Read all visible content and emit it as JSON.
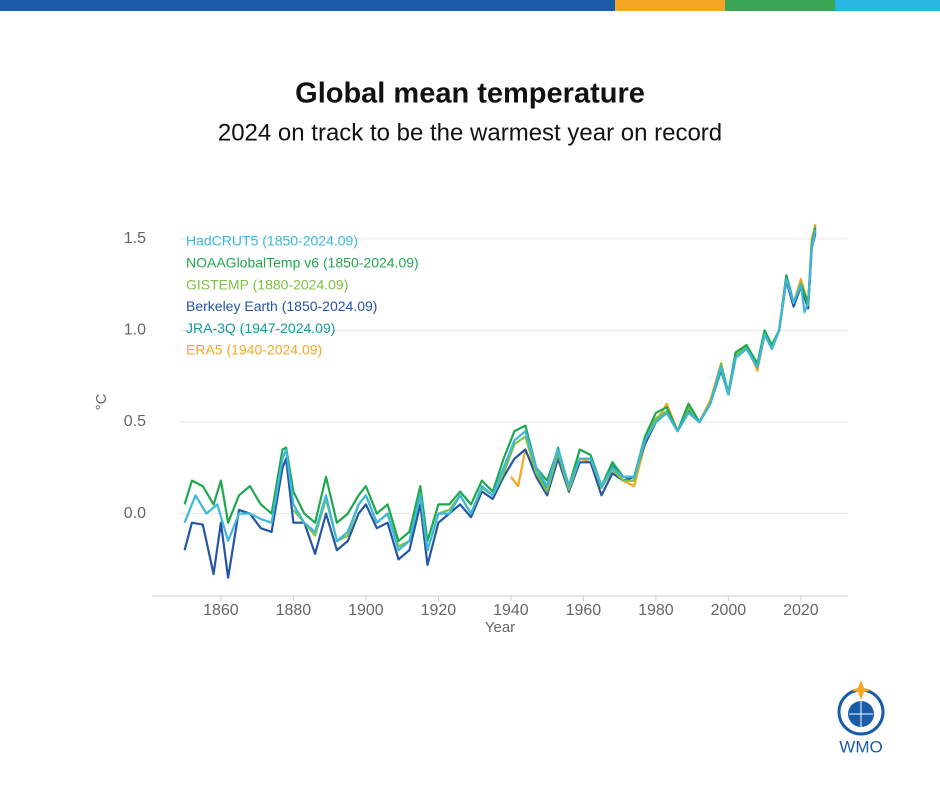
{
  "chart_data": {
    "type": "line",
    "title": "Global mean temperature",
    "subtitle": "2024 on track to be the warmest year on record",
    "x_label": "Year",
    "y_label": "°C",
    "xlim": [
      1841,
      2033
    ],
    "ylim": [
      -0.45,
      1.63
    ],
    "xticks": [
      1860,
      1880,
      1900,
      1920,
      1940,
      1960,
      1980,
      2000,
      2020
    ],
    "yticks": [
      {
        "value": 0,
        "label": "0.0"
      },
      0.5,
      {
        "value": 1,
        "label": "1.0"
      },
      1.5
    ],
    "grid": true,
    "legend": "top-left",
    "series": [
      {
        "name": "HadCRUT5 (1850-2024.09)",
        "color": "#3db8dc",
        "x": [
          1850,
          1853,
          1856,
          1859,
          1862,
          1865,
          1868,
          1871,
          1874,
          1877,
          1878,
          1880,
          1883,
          1886,
          1889,
          1892,
          1895,
          1898,
          1900,
          1903,
          1906,
          1909,
          1912,
          1915,
          1917,
          1920,
          1923,
          1926,
          1929,
          1932,
          1935,
          1938,
          1941,
          1944,
          1947,
          1950,
          1953,
          1956,
          1959,
          1962,
          1965,
          1968,
          1971,
          1974,
          1977,
          1980,
          1983,
          1986,
          1989,
          1992,
          1995,
          1998,
          2000,
          2002,
          2005,
          2008,
          2010,
          2012,
          2014,
          2016,
          2018,
          2020,
          2021,
          2022,
          2023,
          2024
        ],
        "values": [
          -0.05,
          0.1,
          0.0,
          0.05,
          -0.15,
          0.0,
          0.0,
          -0.03,
          -0.05,
          0.3,
          0.35,
          0.05,
          -0.05,
          -0.1,
          0.1,
          -0.15,
          -0.1,
          0.05,
          0.1,
          -0.05,
          0.0,
          -0.2,
          -0.15,
          0.1,
          -0.2,
          0.0,
          0.0,
          0.1,
          0.0,
          0.15,
          0.1,
          0.25,
          0.4,
          0.45,
          0.25,
          0.15,
          0.35,
          0.15,
          0.3,
          0.3,
          0.15,
          0.25,
          0.2,
          0.2,
          0.4,
          0.5,
          0.55,
          0.45,
          0.55,
          0.5,
          0.6,
          0.8,
          0.65,
          0.85,
          0.9,
          0.8,
          0.98,
          0.9,
          1.0,
          1.28,
          1.15,
          1.25,
          1.1,
          1.15,
          1.45,
          1.55
        ]
      },
      {
        "name": "NOAAGlobalTemp v6 (1850-2024.09)",
        "color": "#1ea84e",
        "x": [
          1850,
          1852,
          1855,
          1858,
          1860,
          1862,
          1865,
          1868,
          1871,
          1874,
          1877,
          1878,
          1880,
          1883,
          1886,
          1889,
          1892,
          1895,
          1898,
          1900,
          1903,
          1906,
          1909,
          1912,
          1915,
          1917,
          1920,
          1923,
          1926,
          1929,
          1932,
          1935,
          1938,
          1941,
          1944,
          1947,
          1950,
          1953,
          1956,
          1959,
          1962,
          1965,
          1968,
          1971,
          1974,
          1977,
          1980,
          1983,
          1986,
          1989,
          1992,
          1995,
          1998,
          2000,
          2002,
          2005,
          2008,
          2010,
          2012,
          2014,
          2016,
          2018,
          2020,
          2022,
          2023,
          2024
        ],
        "values": [
          0.05,
          0.18,
          0.15,
          0.05,
          0.18,
          -0.05,
          0.1,
          0.15,
          0.05,
          0.0,
          0.35,
          0.36,
          0.12,
          0.0,
          -0.05,
          0.2,
          -0.05,
          0.0,
          0.1,
          0.15,
          0.0,
          0.05,
          -0.15,
          -0.1,
          0.15,
          -0.15,
          0.05,
          0.05,
          0.12,
          0.05,
          0.18,
          0.12,
          0.3,
          0.45,
          0.48,
          0.25,
          0.18,
          0.35,
          0.15,
          0.35,
          0.32,
          0.15,
          0.28,
          0.2,
          0.2,
          0.42,
          0.55,
          0.58,
          0.45,
          0.6,
          0.5,
          0.6,
          0.8,
          0.66,
          0.88,
          0.92,
          0.82,
          1.0,
          0.92,
          1.0,
          1.3,
          1.15,
          1.25,
          1.15,
          1.47,
          1.56
        ]
      },
      {
        "name": "GISTEMP (1880-2024.09)",
        "color": "#7ec143",
        "x": [
          1880,
          1883,
          1886,
          1889,
          1892,
          1895,
          1898,
          1900,
          1903,
          1906,
          1909,
          1912,
          1915,
          1917,
          1920,
          1923,
          1926,
          1929,
          1932,
          1935,
          1938,
          1941,
          1944,
          1947,
          1950,
          1953,
          1956,
          1959,
          1962,
          1965,
          1968,
          1971,
          1974,
          1977,
          1980,
          1983,
          1986,
          1989,
          1992,
          1995,
          1998,
          2000,
          2002,
          2005,
          2008,
          2010,
          2012,
          2014,
          2016,
          2018,
          2020,
          2022,
          2023,
          2024
        ],
        "values": [
          0.02,
          -0.05,
          -0.12,
          0.08,
          -0.15,
          -0.12,
          0.05,
          0.1,
          -0.05,
          0.0,
          -0.18,
          -0.15,
          0.1,
          -0.2,
          0.0,
          0.02,
          0.1,
          0.0,
          0.14,
          0.1,
          0.22,
          0.38,
          0.42,
          0.22,
          0.12,
          0.33,
          0.13,
          0.3,
          0.3,
          0.14,
          0.24,
          0.18,
          0.18,
          0.4,
          0.52,
          0.56,
          0.45,
          0.58,
          0.5,
          0.6,
          0.82,
          0.66,
          0.86,
          0.92,
          0.8,
          1.0,
          0.9,
          1.0,
          1.3,
          1.15,
          1.26,
          1.14,
          1.48,
          1.57
        ]
      },
      {
        "name": "Berkeley Earth (1850-2024.09)",
        "color": "#2556a5",
        "x": [
          1850,
          1852,
          1855,
          1858,
          1860,
          1862,
          1865,
          1868,
          1871,
          1874,
          1877,
          1878,
          1880,
          1883,
          1886,
          1889,
          1892,
          1895,
          1898,
          1900,
          1903,
          1906,
          1909,
          1912,
          1915,
          1917,
          1920,
          1923,
          1926,
          1929,
          1932,
          1935,
          1938,
          1941,
          1944,
          1947,
          1950,
          1953,
          1956,
          1959,
          1962,
          1965,
          1968,
          1971,
          1974,
          1977,
          1980,
          1983,
          1986,
          1989,
          1992,
          1995,
          1998,
          2000,
          2002,
          2005,
          2008,
          2010,
          2012,
          2014,
          2016,
          2018,
          2020,
          2022,
          2023,
          2024
        ],
        "values": [
          -0.2,
          -0.05,
          -0.06,
          -0.33,
          -0.05,
          -0.35,
          0.02,
          0.0,
          -0.08,
          -0.1,
          0.25,
          0.3,
          -0.05,
          -0.05,
          -0.22,
          0.0,
          -0.2,
          -0.15,
          0.0,
          0.05,
          -0.08,
          -0.05,
          -0.25,
          -0.2,
          0.05,
          -0.28,
          -0.05,
          0.0,
          0.05,
          -0.02,
          0.12,
          0.08,
          0.2,
          0.3,
          0.35,
          0.2,
          0.1,
          0.3,
          0.12,
          0.28,
          0.28,
          0.1,
          0.22,
          0.18,
          0.2,
          0.38,
          0.5,
          0.55,
          0.45,
          0.55,
          0.5,
          0.6,
          0.8,
          0.65,
          0.85,
          0.9,
          0.8,
          0.98,
          0.9,
          1.0,
          1.27,
          1.13,
          1.24,
          1.12,
          1.45,
          1.53
        ]
      },
      {
        "name": "JRA-3Q (1947-2024.09)",
        "color": "#16999a",
        "x": [
          1947,
          1950,
          1953,
          1956,
          1959,
          1962,
          1965,
          1968,
          1971,
          1974,
          1977,
          1980,
          1983,
          1986,
          1989,
          1992,
          1995,
          1998,
          2000,
          2002,
          2005,
          2008,
          2010,
          2012,
          2014,
          2016,
          2018,
          2020,
          2022,
          2023,
          2024
        ],
        "values": [
          0.25,
          0.13,
          0.36,
          0.14,
          0.3,
          0.3,
          0.14,
          0.26,
          0.2,
          0.2,
          0.4,
          0.5,
          0.55,
          0.45,
          0.56,
          0.5,
          0.6,
          0.78,
          0.65,
          0.85,
          0.9,
          0.8,
          0.98,
          0.9,
          1.0,
          1.28,
          1.14,
          1.25,
          1.13,
          1.46,
          1.54
        ]
      },
      {
        "name": "ERA5 (1940-2024.09)",
        "color": "#f5a623",
        "x": [
          1940,
          1942,
          1944,
          1947,
          1950,
          1953,
          1956,
          1959,
          1962,
          1965,
          1968,
          1971,
          1974,
          1977,
          1980,
          1983,
          1986,
          1989,
          1992,
          1995,
          1998,
          2000,
          2002,
          2005,
          2008,
          2010,
          2012,
          2014,
          2016,
          2018,
          2020,
          2022,
          2023,
          2024
        ],
        "values": [
          0.2,
          0.15,
          0.35,
          0.22,
          0.1,
          0.35,
          0.12,
          0.3,
          0.28,
          0.15,
          0.25,
          0.18,
          0.15,
          0.38,
          0.5,
          0.6,
          0.45,
          0.58,
          0.5,
          0.62,
          0.82,
          0.65,
          0.85,
          0.92,
          0.78,
          0.98,
          0.92,
          1.0,
          1.3,
          1.15,
          1.28,
          1.15,
          1.5,
          1.58
        ]
      }
    ]
  },
  "logo_text": "WMO"
}
